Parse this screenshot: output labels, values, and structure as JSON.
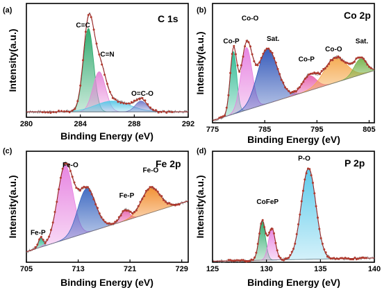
{
  "chart_data": [
    {
      "type": "line",
      "panel": "(a)",
      "title": "C 1s",
      "xlabel": "Binding Energy (eV)",
      "ylabel": "Intensity(a.u.)",
      "xlim": [
        280,
        292
      ],
      "ylim": [
        0,
        1.05
      ],
      "xticks": [
        280,
        284,
        288,
        292
      ],
      "background": {
        "start": 0.05,
        "end": 0.05
      },
      "peaks": [
        {
          "label": "C=C",
          "center": 284.6,
          "fwhm": 0.9,
          "height": 0.77,
          "color": "#2aa86a",
          "label_x": 284.2,
          "label_y": 0.83
        },
        {
          "label": "C=N",
          "center": 285.4,
          "fwhm": 1.1,
          "height": 0.37,
          "color": "#e586d8",
          "label_x": 286.0,
          "label_y": 0.56
        },
        {
          "label": "",
          "center": 286.4,
          "fwhm": 3.0,
          "height": 0.1,
          "color": "#58c8e6",
          "label_x": null,
          "label_y": null
        },
        {
          "label": "O=C-O",
          "center": 288.5,
          "fwhm": 1.0,
          "height": 0.1,
          "color": "#6f78c8",
          "label_x": 288.6,
          "label_y": 0.2
        }
      ],
      "points": {
        "start": 281.2,
        "end": 290.8,
        "step": 0.2
      }
    },
    {
      "type": "line",
      "panel": "(b)",
      "title": "Co 2p",
      "xlabel": "Binding Energy (eV)",
      "ylabel": "Intensity(a.u.)",
      "xlim": [
        775,
        806
      ],
      "ylim": [
        0,
        1.05
      ],
      "xticks": [
        775,
        785,
        795,
        805
      ],
      "background": {
        "start": 0.02,
        "end": 0.46
      },
      "peaks": [
        {
          "label": "Co-P",
          "center": 779.0,
          "fwhm": 1.5,
          "height": 0.55,
          "color": "#2ab890",
          "label_x": 778.6,
          "label_y": 0.7
        },
        {
          "label": "Co-O",
          "center": 781.5,
          "fwhm": 2.5,
          "height": 0.55,
          "color": "#e680e0",
          "label_x": 782.2,
          "label_y": 0.9
        },
        {
          "label": "Sat.",
          "center": 785.5,
          "fwhm": 4.5,
          "height": 0.48,
          "color": "#2f55b8",
          "label_x": 786.6,
          "label_y": 0.72
        },
        {
          "label": "Co-P",
          "center": 793.5,
          "fwhm": 3.2,
          "height": 0.13,
          "color": "#e866b0",
          "label_x": 793.0,
          "label_y": 0.54
        },
        {
          "label": "Co-O",
          "center": 798.5,
          "fwhm": 5.0,
          "height": 0.22,
          "color": "#f5a84c",
          "label_x": 798.2,
          "label_y": 0.63
        },
        {
          "label": "Sat.",
          "center": 803.3,
          "fwhm": 2.8,
          "height": 0.14,
          "color": "#76b34c",
          "label_x": 803.6,
          "label_y": 0.7
        }
      ],
      "points": {
        "start": 776.3,
        "end": 805.5,
        "step": 0.35
      }
    },
    {
      "type": "line",
      "panel": "(c)",
      "title": "Fe 2p",
      "xlabel": "Binding Energy (eV)",
      "ylabel": "Intensity(a.u.)",
      "xlim": [
        705,
        730
      ],
      "ylim": [
        0,
        1.05
      ],
      "xticks": [
        705,
        713,
        721,
        729
      ],
      "background": {
        "start": 0.1,
        "end": 0.58
      },
      "peaks": [
        {
          "label": "Fe-P",
          "center": 707.2,
          "fwhm": 0.8,
          "height": 0.09,
          "color": "#2ab890",
          "label_x": 706.8,
          "label_y": 0.26
        },
        {
          "label": "Fe-O",
          "center": 711.0,
          "fwhm": 2.8,
          "height": 0.7,
          "color": "#e680e0",
          "label_x": 711.8,
          "label_y": 0.9
        },
        {
          "label": "",
          "center": 714.3,
          "fwhm": 3.2,
          "height": 0.42,
          "color": "#3a66c0",
          "label_x": null,
          "label_y": null
        },
        {
          "label": "Fe-P",
          "center": 720.2,
          "fwhm": 1.6,
          "height": 0.1,
          "color": "#e866b0",
          "label_x": 720.5,
          "label_y": 0.61
        },
        {
          "label": "Fe-O",
          "center": 724.2,
          "fwhm": 3.3,
          "height": 0.24,
          "color": "#f28b2a",
          "label_x": 724.2,
          "label_y": 0.85
        }
      ],
      "points": {
        "start": 706.4,
        "end": 728.8,
        "step": 0.3
      }
    },
    {
      "type": "line",
      "panel": "(d)",
      "title": "P 2p",
      "xlabel": "Binding Energy (eV)",
      "ylabel": "Intensity(a.u.)",
      "xlim": [
        125,
        140
      ],
      "ylim": [
        0,
        1.05
      ],
      "xticks": [
        125,
        130,
        135,
        140
      ],
      "background": {
        "start": 0.01,
        "end": 0.04
      },
      "peaks": [
        {
          "label": "",
          "center": 129.6,
          "fwhm": 0.7,
          "height": 0.37,
          "color": "#2aa86a",
          "label_x": null,
          "label_y": null
        },
        {
          "label": "",
          "center": 130.5,
          "fwhm": 0.75,
          "height": 0.3,
          "color": "#e680e0",
          "label_x": null,
          "label_y": null
        },
        {
          "label": "P-O",
          "center": 133.9,
          "fwhm": 1.6,
          "height": 0.86,
          "color": "#56c8ea",
          "label_x": 133.5,
          "label_y": 0.96
        }
      ],
      "extra_labels": [
        {
          "label": "CoFeP",
          "x": 130.1,
          "y": 0.55
        }
      ],
      "points": {
        "start": 126.5,
        "end": 139.3,
        "step": 0.15
      }
    }
  ]
}
